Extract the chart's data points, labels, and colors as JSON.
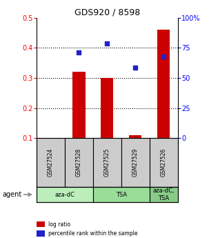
{
  "title": "GDS920 / 8598",
  "samples": [
    "GSM27524",
    "GSM27528",
    "GSM27525",
    "GSM27529",
    "GSM27526"
  ],
  "log_ratio": [
    0.0,
    0.32,
    0.3,
    0.11,
    0.46
  ],
  "percentile_rank": [
    null,
    0.385,
    0.415,
    0.335,
    0.37
  ],
  "bar_color": "#cc0000",
  "dot_color": "#2222cc",
  "ylim_left": [
    0.1,
    0.5
  ],
  "ylim_right": [
    0,
    100
  ],
  "yticks_left": [
    0.1,
    0.2,
    0.3,
    0.4,
    0.5
  ],
  "yticks_right": [
    0,
    25,
    50,
    75,
    100
  ],
  "ytick_labels_right": [
    "0",
    "25",
    "50",
    "75",
    "100%"
  ],
  "agent_groups": [
    {
      "label": "aza-dC",
      "span": [
        0,
        2
      ],
      "color": "#bbeebb"
    },
    {
      "label": "TSA",
      "span": [
        2,
        4
      ],
      "color": "#99dd99"
    },
    {
      "label": "aza-dC,\nTSA",
      "span": [
        4,
        5
      ],
      "color": "#88cc88"
    }
  ],
  "agent_label": "agent",
  "legend_items": [
    {
      "color": "#cc0000",
      "label": "log ratio"
    },
    {
      "color": "#2222cc",
      "label": "percentile rank within the sample"
    }
  ],
  "bar_width": 0.45,
  "dot_size": 22,
  "sample_box_color": "#cccccc"
}
